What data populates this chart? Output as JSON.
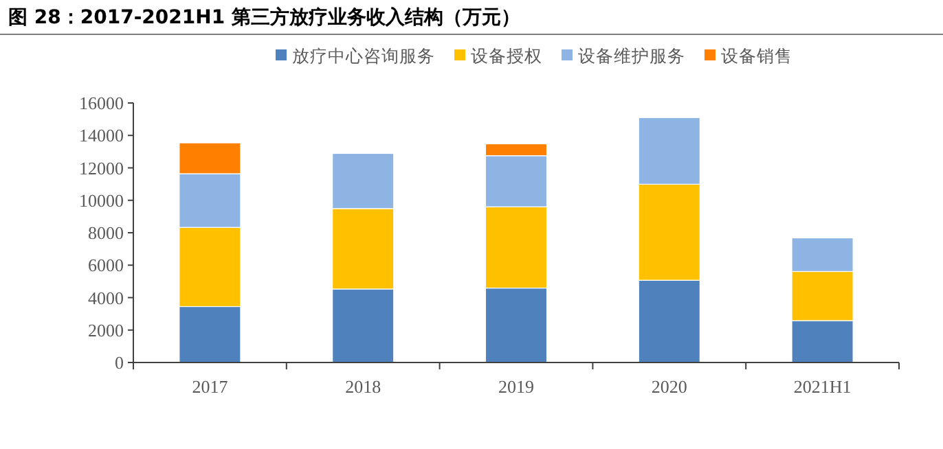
{
  "chart_data": {
    "type": "bar",
    "stacked": true,
    "title": "图 28：2017-2021H1 第三方放疗业务收入结构（万元）",
    "categories": [
      "2017",
      "2018",
      "2019",
      "2020",
      "2021H1"
    ],
    "series": [
      {
        "name": "放疗中心咨询服务",
        "color": "#4f81bd",
        "values": [
          3450,
          4530,
          4590,
          5070,
          2580
        ]
      },
      {
        "name": "设备授权",
        "color": "#ffc000",
        "values": [
          4880,
          4960,
          5010,
          5920,
          3030
        ]
      },
      {
        "name": "设备维护服务",
        "color": "#8eb4e3",
        "values": [
          3310,
          3400,
          3150,
          4110,
          2070
        ]
      },
      {
        "name": "设备销售",
        "color": "#ff8000",
        "values": [
          1900,
          null,
          730,
          null,
          null
        ]
      }
    ],
    "ylim": [
      0,
      16000
    ],
    "yticks": [
      0,
      2000,
      4000,
      6000,
      8000,
      10000,
      12000,
      14000,
      16000
    ],
    "grid": false,
    "legend": "top"
  }
}
